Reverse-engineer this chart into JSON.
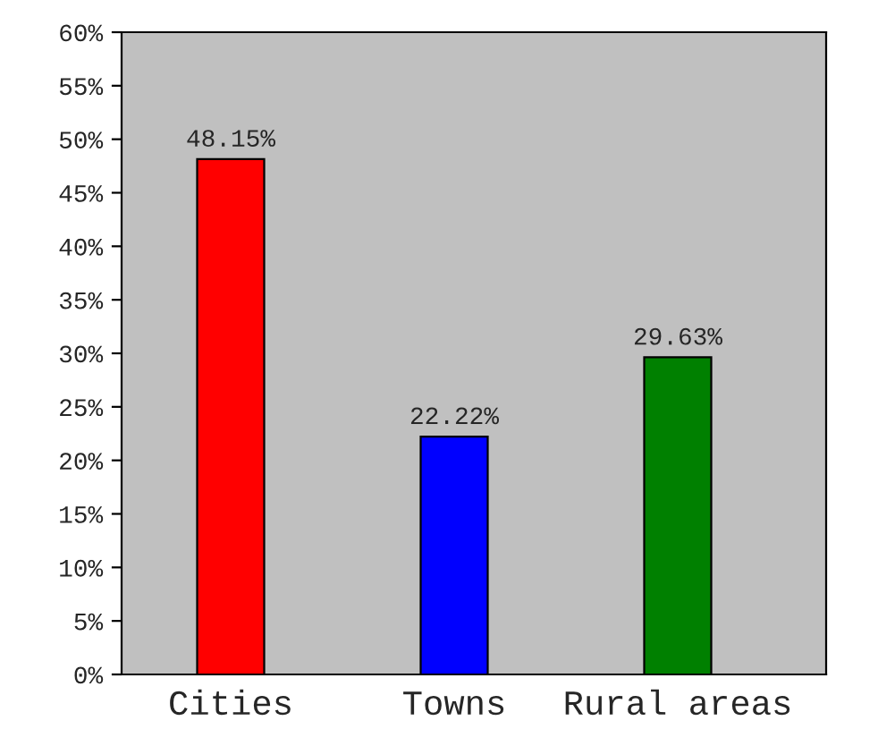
{
  "chart_data": {
    "type": "bar",
    "categories": [
      "Cities",
      "Towns",
      "Rural areas"
    ],
    "values": [
      48.15,
      22.22,
      29.63
    ],
    "colors": [
      "#ff0000",
      "#0000ff",
      "#008000"
    ],
    "value_labels": [
      "48.15%",
      "22.22%",
      "29.63%"
    ],
    "ylim": [
      0,
      60
    ],
    "yticks": [
      {
        "value": 0,
        "label": "0%"
      },
      {
        "value": 5,
        "label": "5%"
      },
      {
        "value": 10,
        "label": "10%"
      },
      {
        "value": 15,
        "label": "15%"
      },
      {
        "value": 20,
        "label": "20%"
      },
      {
        "value": 25,
        "label": "25%"
      },
      {
        "value": 30,
        "label": "30%"
      },
      {
        "value": 35,
        "label": "35%"
      },
      {
        "value": 40,
        "label": "40%"
      },
      {
        "value": 45,
        "label": "45%"
      },
      {
        "value": 50,
        "label": "50%"
      },
      {
        "value": 55,
        "label": "55%"
      },
      {
        "value": 60,
        "label": "60%"
      }
    ],
    "grid": false
  }
}
